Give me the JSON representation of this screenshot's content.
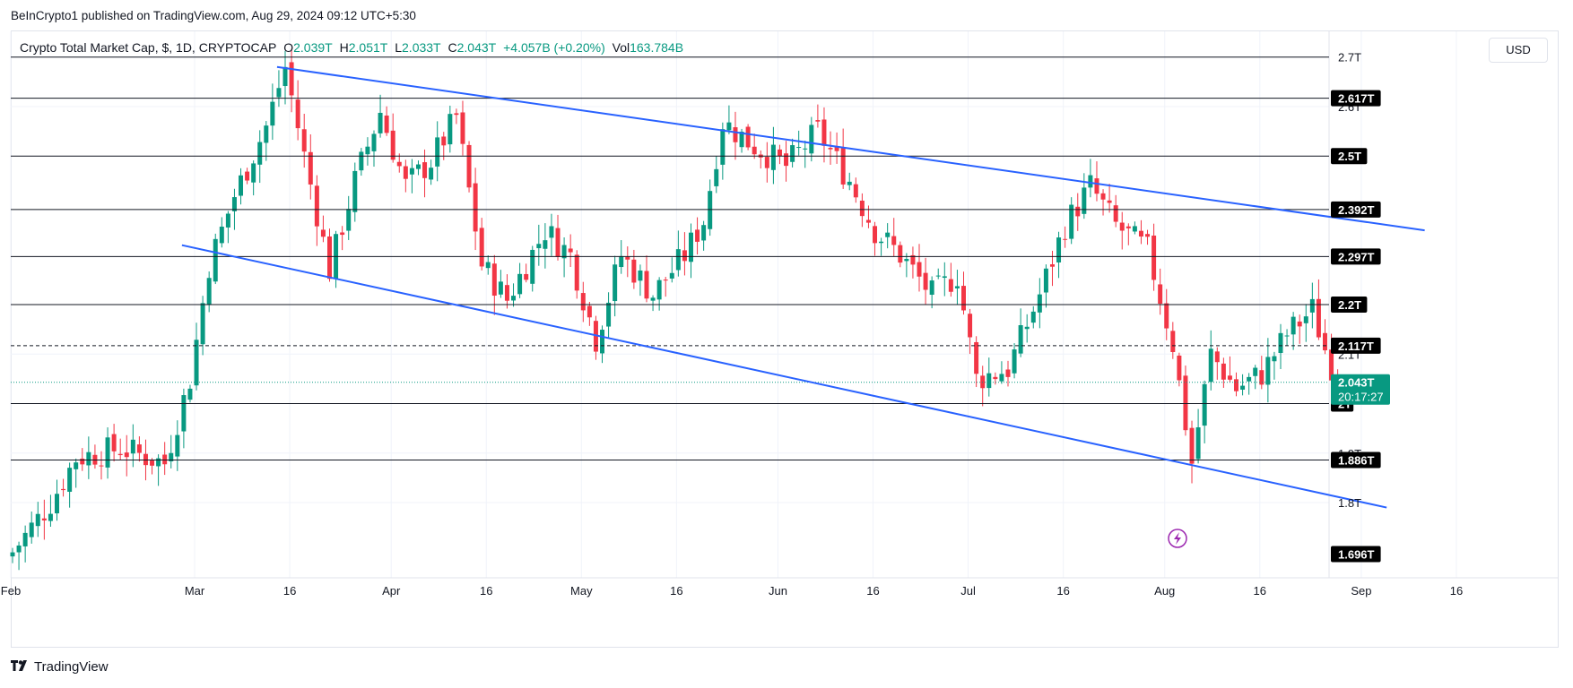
{
  "publish_line": "BeInCrypto1 published on TradingView.com, Aug 29, 2024 09:12 UTC+5:30",
  "legend": {
    "symbol": "Crypto Total Market Cap, $, 1D, CRYPTOCAP",
    "o_label": "O",
    "o_value": "2.039T",
    "h_label": "H",
    "h_value": "2.051T",
    "l_label": "L",
    "l_value": "2.033T",
    "c_label": "C",
    "c_value": "2.043T",
    "change": "+4.057B (+0.20%)",
    "vol_label": "Vol",
    "vol_value": "163.784B"
  },
  "currency_button": "USD",
  "brand": "TradingView",
  "colors": {
    "up": "#089981",
    "down": "#f23645",
    "trend": "#2962ff",
    "level": "#131722"
  },
  "chart_data": {
    "type": "candlestick",
    "title": "Crypto Total Market Cap, $, 1D, CRYPTOCAP",
    "unit": "trillion USD",
    "x_ticks": [
      {
        "day": 0,
        "label": "Feb"
      },
      {
        "day": 29,
        "label": "Mar"
      },
      {
        "day": 44,
        "label": "16"
      },
      {
        "day": 60,
        "label": "Apr"
      },
      {
        "day": 75,
        "label": "16"
      },
      {
        "day": 90,
        "label": "May"
      },
      {
        "day": 105,
        "label": "16"
      },
      {
        "day": 121,
        "label": "Jun"
      },
      {
        "day": 136,
        "label": "16"
      },
      {
        "day": 151,
        "label": "Jul"
      },
      {
        "day": 166,
        "label": "16"
      },
      {
        "day": 182,
        "label": "Aug"
      },
      {
        "day": 197,
        "label": "16"
      },
      {
        "day": 213,
        "label": "Sep"
      },
      {
        "day": 228,
        "label": "16"
      }
    ],
    "y_ticks": [
      "2.7T",
      "2.6T",
      "2.1T",
      "1.9T",
      "1.8T"
    ],
    "y_tick_values": [
      2.7,
      2.6,
      2.1,
      1.9,
      1.8
    ],
    "horizontal_levels": [
      {
        "value": 2.7,
        "label": ""
      },
      {
        "value": 2.617,
        "label": "2.617T"
      },
      {
        "value": 2.5,
        "label": "2.5T"
      },
      {
        "value": 2.392,
        "label": "2.392T"
      },
      {
        "value": 2.297,
        "label": "2.297T"
      },
      {
        "value": 2.2,
        "label": "2.2T"
      },
      {
        "value": 2.117,
        "label": "2.117T",
        "dashed": true
      },
      {
        "value": 2.0,
        "label": "2T"
      },
      {
        "value": 1.886,
        "label": "1.886T"
      }
    ],
    "bottom_label": "1.696T",
    "bottom_value": 1.696,
    "current_price": {
      "value": 2.043,
      "label": "2.043T",
      "countdown": "20:17:27"
    },
    "trendlines": [
      {
        "name": "upper",
        "from": {
          "day": 42,
          "value": 2.68
        },
        "to": {
          "day": 223,
          "value": 2.35
        }
      },
      {
        "name": "lower",
        "from": {
          "day": 27,
          "value": 2.32
        },
        "to": {
          "day": 217,
          "value": 1.79
        }
      }
    ],
    "closes_anchors": [
      [
        0,
        1.7
      ],
      [
        6,
        1.8
      ],
      [
        10,
        1.89
      ],
      [
        17,
        1.91
      ],
      [
        24,
        1.88
      ],
      [
        28,
        2.05
      ],
      [
        31,
        2.28
      ],
      [
        35,
        2.42
      ],
      [
        40,
        2.56
      ],
      [
        43,
        2.68
      ],
      [
        46,
        2.5
      ],
      [
        50,
        2.27
      ],
      [
        54,
        2.45
      ],
      [
        58,
        2.59
      ],
      [
        62,
        2.44
      ],
      [
        66,
        2.49
      ],
      [
        70,
        2.58
      ],
      [
        74,
        2.28
      ],
      [
        78,
        2.21
      ],
      [
        84,
        2.35
      ],
      [
        88,
        2.3
      ],
      [
        92,
        2.13
      ],
      [
        96,
        2.3
      ],
      [
        101,
        2.22
      ],
      [
        106,
        2.3
      ],
      [
        109,
        2.37
      ],
      [
        112,
        2.57
      ],
      [
        117,
        2.52
      ],
      [
        122,
        2.48
      ],
      [
        127,
        2.55
      ],
      [
        132,
        2.45
      ],
      [
        136,
        2.35
      ],
      [
        140,
        2.3
      ],
      [
        145,
        2.22
      ],
      [
        149,
        2.26
      ],
      [
        152,
        2.05
      ],
      [
        157,
        2.07
      ],
      [
        162,
        2.22
      ],
      [
        166,
        2.36
      ],
      [
        170,
        2.44
      ],
      [
        174,
        2.36
      ],
      [
        179,
        2.31
      ],
      [
        183,
        2.12
      ],
      [
        186,
        1.88
      ],
      [
        189,
        2.1
      ],
      [
        193,
        2.03
      ],
      [
        197,
        2.06
      ],
      [
        201,
        2.14
      ],
      [
        205,
        2.19
      ],
      [
        207,
        2.11
      ],
      [
        209,
        2.043
      ]
    ],
    "series_days": 210
  }
}
